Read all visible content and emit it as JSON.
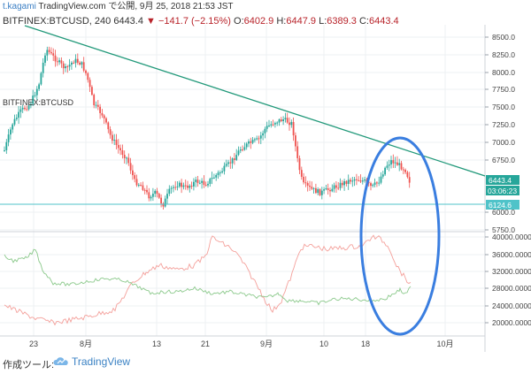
{
  "header": {
    "author": "t.kagami",
    "publish_text": "TradingView.com で公開, 9月 25, 2018 21:53 JST",
    "symbol": "BITFINEX:BTCUSD, 240",
    "last": "6443.4",
    "change": "−141.7 (−2.15%)",
    "ohlc": {
      "o_label": "O:",
      "o": "6402.9",
      "h_label": "H:",
      "h": "6447.9",
      "l_label": "L:",
      "l": "6389.3",
      "c_label": "C:",
      "c": "6443.4"
    }
  },
  "legend": "BITFINEX:BTCUSD",
  "price_axis": {
    "ticks": [
      "8500.0",
      "8250.0",
      "8000.0",
      "7750.0",
      "7500.0",
      "7250.0",
      "7000.0",
      "6750.0",
      "6000.0",
      "5750.0"
    ],
    "last_price_label": "6443.4",
    "countdown_label": "03:06:23",
    "support_label": "6124.6"
  },
  "volume_axis": {
    "ticks": [
      "40000.0000",
      "36000.0000",
      "32000.0000",
      "28000.0000",
      "24000.0000",
      "20000.0000"
    ]
  },
  "time_axis": {
    "ticks": [
      "23",
      "8月",
      "13",
      "21",
      "9月",
      "10",
      "18",
      "10月"
    ]
  },
  "colors": {
    "up": "#26a69a",
    "down": "#ef5350",
    "trendline": "#22997a",
    "support": "#4fc3c9",
    "highlight_ellipse": "#3a7ee0",
    "ind_red": "#f4a09b",
    "ind_green": "#8bc98b"
  },
  "footer": {
    "made_with": "作成ツール:",
    "brand": "TradingView",
    "brand_icon": "tradingview-cloud-icon"
  }
}
